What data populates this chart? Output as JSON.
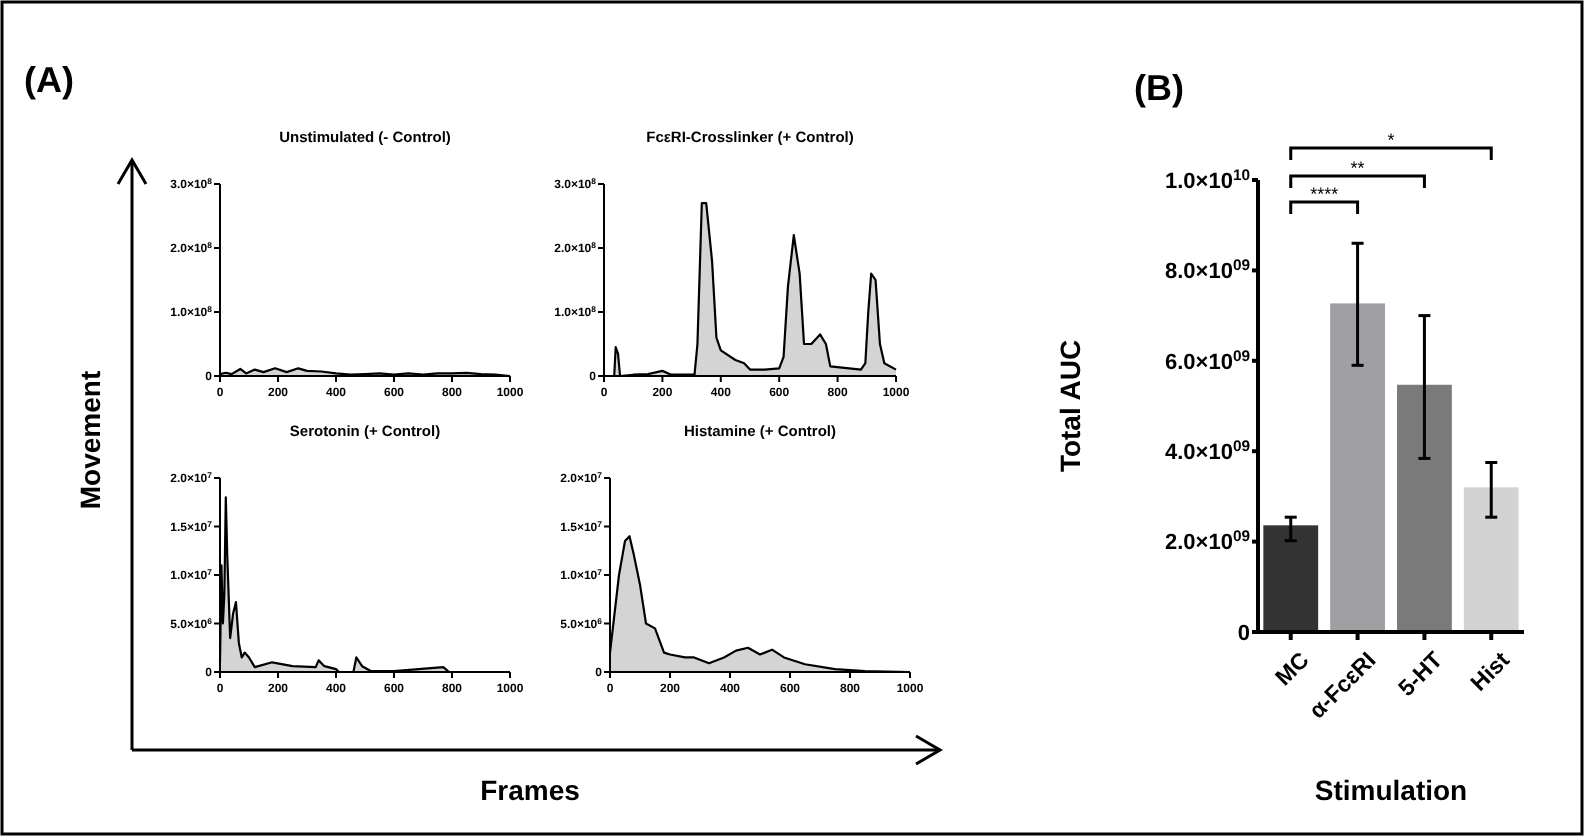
{
  "chart_data": [
    {
      "type": "area",
      "title": "Unstimulated (- Control)",
      "annotations": [
        "(A)",
        "Movement",
        "Frames"
      ],
      "xlim": [
        0,
        1000
      ],
      "xticks": [
        0,
        200,
        400,
        600,
        800,
        1000
      ],
      "ylim": [
        0,
        300000000
      ],
      "yticks": [
        {
          "value": 0,
          "label": "0"
        },
        {
          "value": 100000000,
          "label": "1.0×10$^{8}$"
        },
        {
          "value": 200000000,
          "label": "2.0×10$^{8}$"
        },
        {
          "value": 300000000,
          "label": "3.0×10$^{8}$"
        }
      ],
      "series": [
        {
          "color": "#d4d4d4",
          "x": [
            0,
            20,
            40,
            70,
            90,
            120,
            150,
            190,
            230,
            270,
            300,
            350,
            400,
            450,
            500,
            550,
            600,
            650,
            700,
            750,
            800,
            850,
            900,
            950,
            1000
          ],
          "values": [
            3000000,
            5000000,
            3000000,
            11000000,
            4000000,
            10000000,
            6000000,
            12000000,
            6000000,
            12000000,
            8000000,
            7000000,
            4000000,
            2000000,
            3000000,
            4000000,
            2000000,
            4000000,
            2000000,
            4000000,
            4000000,
            5000000,
            3000000,
            2000000,
            0
          ]
        }
      ]
    },
    {
      "type": "area",
      "title": "FcεRI-Crosslinker (+ Control)",
      "xlim": [
        0,
        1000
      ],
      "xticks": [
        0,
        200,
        400,
        600,
        800,
        1000
      ],
      "ylim": [
        0,
        300000000
      ],
      "yticks": [
        {
          "value": 0,
          "label": "0"
        },
        {
          "value": 100000000,
          "label": "1.0×10$^{8}$"
        },
        {
          "value": 200000000,
          "label": "2.0×10$^{8}$"
        },
        {
          "value": 300000000,
          "label": "3.0×10$^{8}$"
        }
      ],
      "series": [
        {
          "color": "#d4d4d4",
          "x": [
            0,
            35,
            40,
            48,
            55,
            100,
            150,
            200,
            230,
            310,
            320,
            335,
            350,
            370,
            385,
            400,
            450,
            480,
            500,
            550,
            600,
            615,
            630,
            650,
            670,
            685,
            710,
            740,
            760,
            775,
            880,
            895,
            905,
            915,
            930,
            945,
            960,
            1000
          ],
          "values": [
            0,
            0,
            45000000,
            35000000,
            0,
            2000000,
            3000000,
            8000000,
            2000000,
            2000000,
            50000000,
            270000000,
            270000000,
            180000000,
            60000000,
            40000000,
            25000000,
            20000000,
            10000000,
            10000000,
            12000000,
            30000000,
            140000000,
            220000000,
            160000000,
            50000000,
            50000000,
            65000000,
            50000000,
            15000000,
            10000000,
            20000000,
            100000000,
            160000000,
            150000000,
            50000000,
            20000000,
            10000000
          ]
        }
      ]
    },
    {
      "type": "area",
      "title": "Serotonin (+ Control)",
      "xlim": [
        0,
        1000
      ],
      "xticks": [
        0,
        200,
        400,
        600,
        800,
        1000
      ],
      "ylim": [
        0,
        20000000
      ],
      "yticks": [
        {
          "value": 0,
          "label": "0"
        },
        {
          "value": 5000000,
          "label": "5.0×10$^{6}$"
        },
        {
          "value": 10000000,
          "label": "1.0×10$^{7}$"
        },
        {
          "value": 15000000,
          "label": "1.5×10$^{7}$"
        },
        {
          "value": 20000000,
          "label": "2.0×10$^{7}$"
        }
      ],
      "series": [
        {
          "color": "#d4d4d4",
          "x": [
            0,
            5,
            10,
            15,
            20,
            25,
            35,
            45,
            55,
            65,
            75,
            85,
            100,
            120,
            180,
            250,
            330,
            340,
            360,
            400,
            410,
            460,
            470,
            490,
            520,
            600,
            770,
            790,
            1000
          ],
          "values": [
            1000000,
            11000000,
            5000000,
            8000000,
            18000000,
            12000000,
            3500000,
            6000000,
            7200000,
            3000000,
            1500000,
            2000000,
            1500000,
            500000,
            1000000,
            600000,
            500000,
            1200000,
            600000,
            300000,
            0,
            0,
            1500000,
            600000,
            100000,
            100000,
            500000,
            0,
            0
          ]
        }
      ]
    },
    {
      "type": "area",
      "title": "Histamine (+ Control)",
      "xlim": [
        0,
        1000
      ],
      "xticks": [
        0,
        200,
        400,
        600,
        800,
        1000
      ],
      "ylim": [
        0,
        20000000
      ],
      "yticks": [
        {
          "value": 0,
          "label": "0"
        },
        {
          "value": 5000000,
          "label": "5.0×10$^{6}$"
        },
        {
          "value": 10000000,
          "label": "1.0×10$^{7}$"
        },
        {
          "value": 15000000,
          "label": "1.5×10$^{7}$"
        },
        {
          "value": 20000000,
          "label": "2.0×10$^{7}$"
        }
      ],
      "series": [
        {
          "color": "#d4d4d4",
          "x": [
            0,
            15,
            30,
            50,
            65,
            80,
            100,
            110,
            120,
            150,
            180,
            200,
            250,
            280,
            330,
            380,
            420,
            460,
            500,
            540,
            580,
            650,
            750,
            850,
            1000
          ],
          "values": [
            2000000,
            6000000,
            10000000,
            13500000,
            14000000,
            12000000,
            9000000,
            7000000,
            5000000,
            4500000,
            2000000,
            1800000,
            1500000,
            1500000,
            900000,
            1500000,
            2200000,
            2500000,
            1800000,
            2300000,
            1500000,
            800000,
            300000,
            100000,
            0
          ]
        }
      ]
    },
    {
      "type": "bar",
      "annotations": [
        "(B)",
        "****",
        "**",
        "*"
      ],
      "ylabel": "Total AUC",
      "xlabel": "Stimulation",
      "categories": [
        "MC",
        "α-FcεRI",
        "5-HT",
        "Hist"
      ],
      "values": [
        2360000000,
        7270000000,
        5470000000,
        3200000000
      ],
      "colors": [
        "#333333",
        "#a0a0a4",
        "#7a7a7a",
        "#d3d3d3"
      ],
      "errors": [
        [
          2020000000,
          2540000000
        ],
        [
          5900000000,
          8600000000
        ],
        [
          3840000000,
          7000000000
        ],
        [
          2540000000,
          3750000000
        ]
      ],
      "ylim": [
        0,
        10000000000
      ],
      "yticks": [
        {
          "value": 0,
          "label": "0"
        },
        {
          "value": 2000000000,
          "label": "2.0×10$^{09}$"
        },
        {
          "value": 4000000000,
          "label": "4.0×10$^{09}$"
        },
        {
          "value": 6000000000,
          "label": "6.0×10$^{09}$"
        },
        {
          "value": 8000000000,
          "label": "8.0×10$^{09}$"
        },
        {
          "value": 10000000000,
          "label": "1.0×10$^{10}$"
        }
      ]
    }
  ]
}
